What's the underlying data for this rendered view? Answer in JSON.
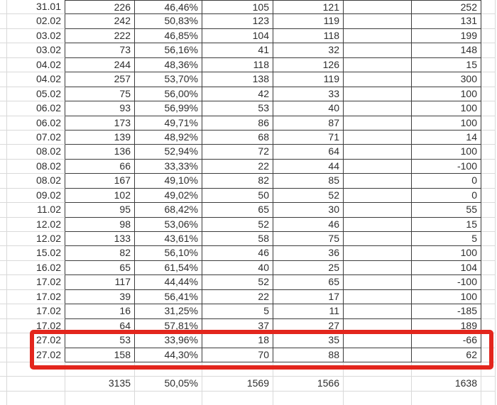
{
  "table": {
    "rows": [
      [
        "31.01",
        "226",
        "46,46%",
        "105",
        "121",
        "",
        "252"
      ],
      [
        "02.02",
        "242",
        "50,83%",
        "123",
        "119",
        "",
        "131"
      ],
      [
        "03.02",
        "222",
        "46,85%",
        "104",
        "118",
        "",
        "199"
      ],
      [
        "03.02",
        "73",
        "56,16%",
        "41",
        "32",
        "",
        "148"
      ],
      [
        "04.02",
        "244",
        "48,36%",
        "118",
        "126",
        "",
        "15"
      ],
      [
        "04.02",
        "257",
        "53,70%",
        "138",
        "119",
        "",
        "300"
      ],
      [
        "05.02",
        "75",
        "56,00%",
        "42",
        "33",
        "",
        "100"
      ],
      [
        "06.02",
        "93",
        "56,99%",
        "53",
        "40",
        "",
        "100"
      ],
      [
        "06.02",
        "173",
        "49,71%",
        "86",
        "87",
        "",
        "100"
      ],
      [
        "07.02",
        "139",
        "48,92%",
        "68",
        "71",
        "",
        "14"
      ],
      [
        "08.02",
        "136",
        "52,94%",
        "72",
        "64",
        "",
        "100"
      ],
      [
        "08.02",
        "66",
        "33,33%",
        "22",
        "44",
        "",
        "-100"
      ],
      [
        "08.02",
        "167",
        "49,10%",
        "82",
        "85",
        "",
        "0"
      ],
      [
        "09.02",
        "102",
        "49,02%",
        "50",
        "52",
        "",
        "0"
      ],
      [
        "11.02",
        "95",
        "68,42%",
        "65",
        "30",
        "",
        "55"
      ],
      [
        "12.02",
        "98",
        "53,06%",
        "52",
        "46",
        "",
        "15"
      ],
      [
        "12.02",
        "133",
        "43,61%",
        "58",
        "75",
        "",
        "5"
      ],
      [
        "15.02",
        "82",
        "56,10%",
        "46",
        "36",
        "",
        "100"
      ],
      [
        "16.02",
        "65",
        "61,54%",
        "40",
        "25",
        "",
        "104"
      ],
      [
        "17.02",
        "117",
        "44,44%",
        "52",
        "65",
        "",
        "-100"
      ],
      [
        "17.02",
        "39",
        "56,41%",
        "22",
        "17",
        "",
        "100"
      ],
      [
        "17.02",
        "16",
        "31,25%",
        "5",
        "11",
        "",
        "-185"
      ],
      [
        "17.02",
        "64",
        "57,81%",
        "37",
        "27",
        "",
        "189"
      ],
      [
        "27.02",
        "53",
        "33,96%",
        "18",
        "35",
        "",
        "-66"
      ],
      [
        "27.02",
        "158",
        "44,30%",
        "70",
        "88",
        "",
        "62"
      ]
    ],
    "totals_row": [
      "",
      "3135",
      "50,05%",
      "1569",
      "1566",
      "",
      "1638"
    ]
  },
  "annotation": {
    "type": "red-rectangle",
    "highlight_color": "#e3261d",
    "highlighted_dates": [
      "27.02",
      "27.02"
    ]
  },
  "colors": {
    "grid_line": "#d9d9d9",
    "table_border": "#3c3c3c",
    "text": "#2e2e2e",
    "background": "#ffffff"
  }
}
